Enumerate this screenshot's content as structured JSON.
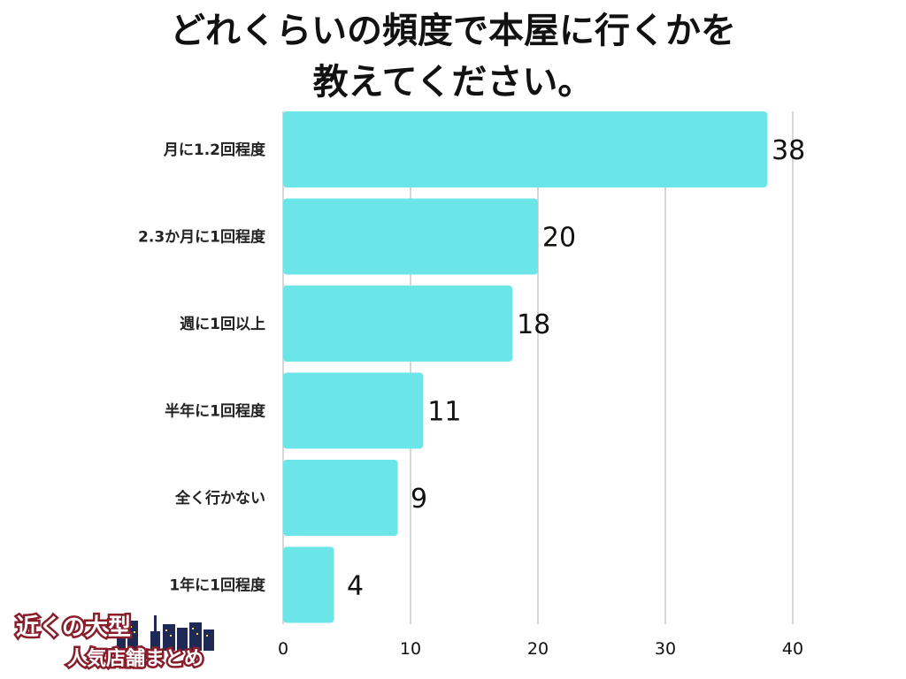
{
  "title": {
    "line1": "どれくらいの頻度で本屋に行くかを",
    "line2": "教えてください。"
  },
  "logo": {
    "text_line1": "近くの大型",
    "text_line2": "人気店舗まとめ"
  },
  "colors": {
    "bar": "#6be5e8",
    "grid": "#d6d6d6",
    "text": "#111111"
  },
  "chart_data": {
    "type": "bar",
    "orientation": "horizontal",
    "categories": [
      "月に1.2回程度",
      "2.3か月に1回程度",
      "週に1回以上",
      "半年に1回程度",
      "全く行かない",
      "1年に1回程度"
    ],
    "values": [
      38,
      20,
      18,
      11,
      9,
      4
    ],
    "xlim": [
      0,
      40
    ],
    "xticks": [
      0,
      10,
      20,
      30,
      40
    ],
    "grid": "vertical",
    "data_labels": true
  }
}
